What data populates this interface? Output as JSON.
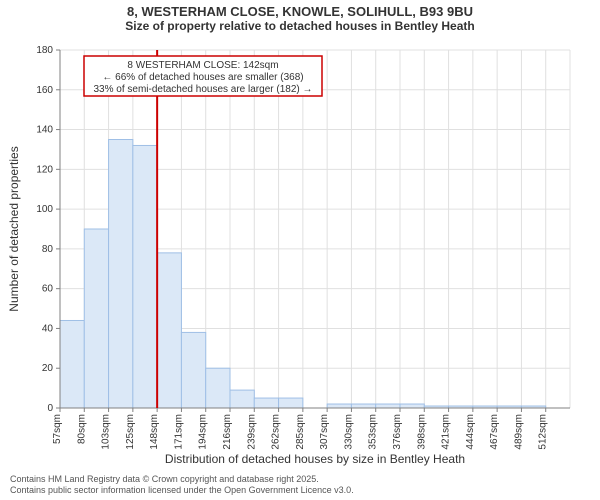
{
  "title": {
    "address": "8, WESTERHAM CLOSE, KNOWLE, SOLIHULL, B93 9BU",
    "subtitle": "Size of property relative to detached houses in Bentley Heath"
  },
  "chart": {
    "type": "histogram",
    "bar_fill": "#dbe8f7",
    "bar_stroke": "#9fbfe6",
    "grid_color": "#e0e0e0",
    "axis_color": "#808080",
    "background_color": "#ffffff",
    "marker_color": "#cc0000",
    "annot_border": "#cc0000",
    "x_axis_title": "Distribution of detached houses by size in Bentley Heath",
    "y_axis_title": "Number of detached properties",
    "y_max": 180,
    "y_tick_step": 20,
    "x_labels": [
      "57sqm",
      "80sqm",
      "103sqm",
      "125sqm",
      "148sqm",
      "171sqm",
      "194sqm",
      "216sqm",
      "239sqm",
      "262sqm",
      "285sqm",
      "307sqm",
      "330sqm",
      "353sqm",
      "376sqm",
      "398sqm",
      "421sqm",
      "444sqm",
      "467sqm",
      "489sqm",
      "512sqm"
    ],
    "values": [
      44,
      90,
      135,
      132,
      78,
      38,
      20,
      9,
      5,
      5,
      0,
      2,
      2,
      2,
      2,
      1,
      1,
      1,
      1,
      1,
      0
    ],
    "marker_bin_index": 4,
    "annotation": {
      "line1": "8 WESTERHAM CLOSE: 142sqm",
      "line2": "← 66% of detached houses are smaller (368)",
      "line3": "33% of semi-detached houses are larger (182) →"
    },
    "label_fontsize": 10,
    "title_fontsize": 13,
    "subtitle_fontsize": 12
  },
  "footer": {
    "line1": "Contains HM Land Registry data © Crown copyright and database right 2025.",
    "line2": "Contains public sector information licensed under the Open Government Licence v3.0."
  }
}
